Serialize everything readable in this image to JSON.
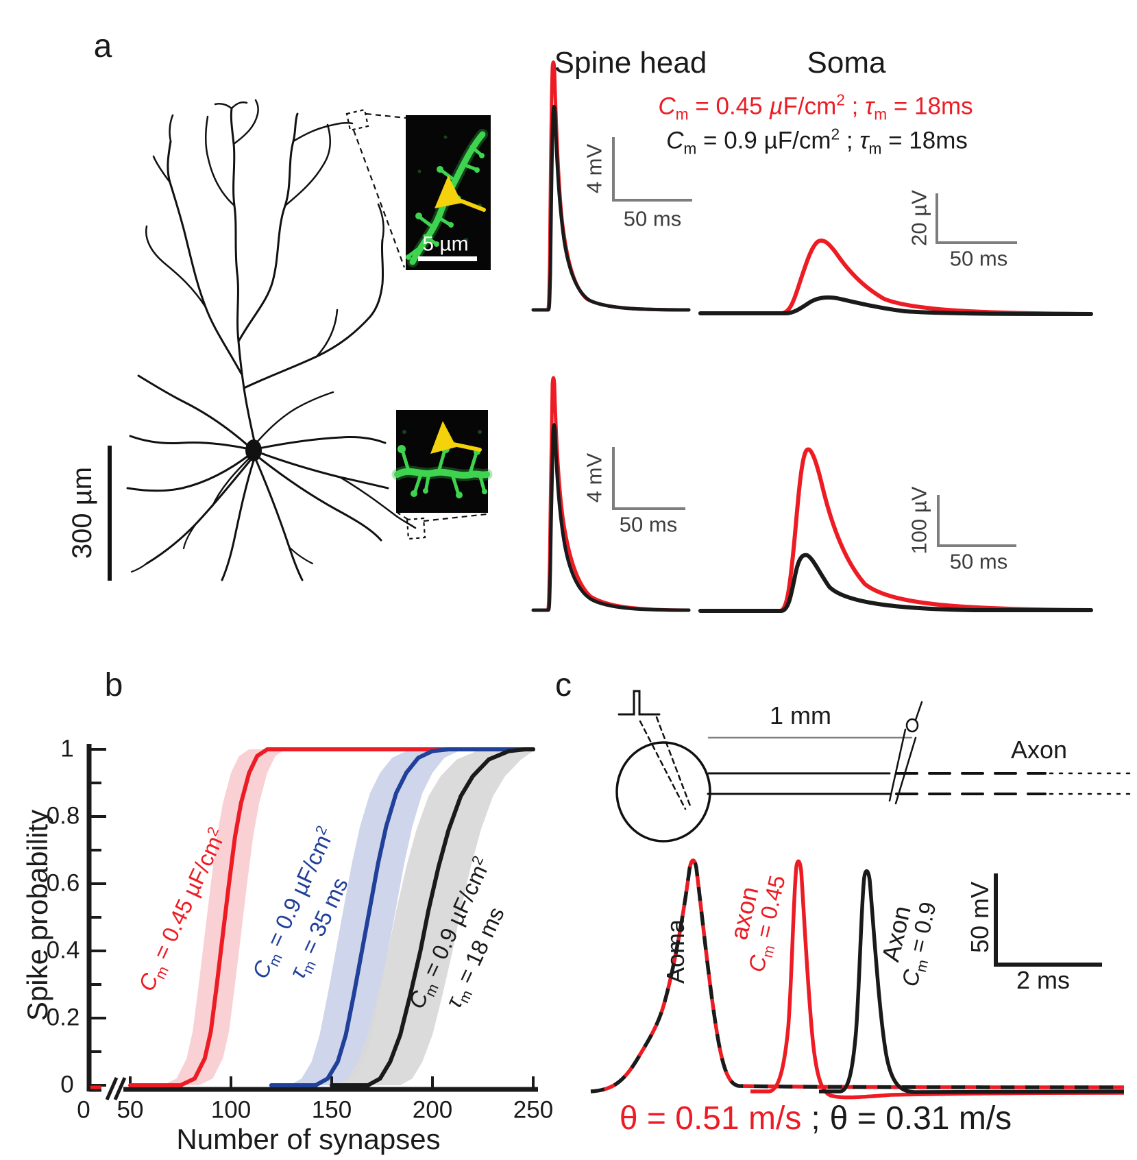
{
  "colors": {
    "red": "#ed1c24",
    "blue": "#21409a",
    "black": "#1a1a1a",
    "gray_scalebar": "#7d7d7d",
    "red_band": "#f9cfd2",
    "blue_band": "#ccd4ea",
    "black_band": "#d9d9d9",
    "inset_green": "#3fd44f",
    "arrow_yellow": "#f4d20c"
  },
  "panel_a": {
    "letter": "a",
    "morphology_scalebar_label": "300 µm",
    "inset_scalebar_label": "5 µm",
    "col_titles": {
      "spine": "Spine head",
      "soma": "Soma"
    },
    "legend": {
      "red": "*C*_{m} = 0.45 *µ*F/cm^{2} ; *τ*_{m} = 18ms",
      "black": "*C*_{m} = 0.9 µF/cm^{2} ; *τ*_{m} = 18ms"
    },
    "scalebars": {
      "spine_top": {
        "v": "4 mV",
        "h": "50 ms"
      },
      "soma_top": {
        "v": "20 µV",
        "h": "50 ms"
      },
      "spine_bottom": {
        "v": "4 mV",
        "h": "50 ms"
      },
      "soma_bottom": {
        "v": "100 µV",
        "h": "50 ms"
      }
    }
  },
  "panel_b": {
    "letter": "b",
    "series_labels": {
      "red": "*C*_{m} = 0.45  µF/cm^{2}",
      "blue_line1": "*C*_{m} = 0.9 µF/cm^{2}",
      "blue_line2": "*τ*_{m} = 35 ms",
      "black_line1": "*C*_{m} = 0.9 µF/cm^{2}",
      "black_line2": "*τ*_{m} = 18 ms"
    }
  },
  "chart_data": {
    "type": "line",
    "xlabel": "Number of synapses",
    "ylabel": "Spike probability",
    "xlim": [
      0,
      250
    ],
    "ylim": [
      0,
      1
    ],
    "x_ticks": [
      0,
      50,
      100,
      150,
      200,
      250
    ],
    "y_ticks": [
      0,
      0.2,
      0.4,
      0.6,
      0.8,
      1
    ],
    "axis_break_x": true,
    "grid": false,
    "legend_position": "none",
    "series": [
      {
        "name": "Cm = 0.45 µF/cm2",
        "color": "#ed1c24",
        "band_color": "#f9cfd2",
        "band_halfwidth_x": 9,
        "points": [
          [
            50,
            0
          ],
          [
            75,
            0
          ],
          [
            82,
            0.02
          ],
          [
            87,
            0.08
          ],
          [
            90,
            0.16
          ],
          [
            93,
            0.3
          ],
          [
            96,
            0.45
          ],
          [
            99,
            0.6
          ],
          [
            102,
            0.74
          ],
          [
            105,
            0.84
          ],
          [
            109,
            0.93
          ],
          [
            113,
            0.98
          ],
          [
            118,
            1
          ],
          [
            250,
            1
          ]
        ]
      },
      {
        "name": "Cm = 0.9 µF/cm2, τm = 35 ms",
        "color": "#21409a",
        "band_color": "#ccd4ea",
        "band_halfwidth_x": 13,
        "points": [
          [
            120,
            0
          ],
          [
            142,
            0
          ],
          [
            148,
            0.02
          ],
          [
            153,
            0.07
          ],
          [
            157,
            0.15
          ],
          [
            161,
            0.27
          ],
          [
            165,
            0.4
          ],
          [
            169,
            0.53
          ],
          [
            173,
            0.66
          ],
          [
            177,
            0.77
          ],
          [
            182,
            0.87
          ],
          [
            187,
            0.93
          ],
          [
            193,
            0.975
          ],
          [
            200,
            0.995
          ],
          [
            208,
            1
          ],
          [
            250,
            1
          ]
        ]
      },
      {
        "name": "Cm = 0.9 µF/cm2, τm = 18 ms",
        "color": "#1a1a1a",
        "band_color": "#d9d9d9",
        "band_halfwidth_x": 16,
        "points": [
          [
            150,
            0
          ],
          [
            168,
            0
          ],
          [
            174,
            0.02
          ],
          [
            179,
            0.07
          ],
          [
            184,
            0.15
          ],
          [
            189,
            0.27
          ],
          [
            194,
            0.4
          ],
          [
            198,
            0.52
          ],
          [
            203,
            0.65
          ],
          [
            208,
            0.76
          ],
          [
            214,
            0.86
          ],
          [
            220,
            0.92
          ],
          [
            228,
            0.97
          ],
          [
            238,
            0.995
          ],
          [
            246,
            1
          ],
          [
            250,
            1
          ]
        ]
      }
    ]
  },
  "panel_c": {
    "letter": "c",
    "distance_label": "1 mm",
    "axon_label": "Axon",
    "trace_labels": {
      "soma": "Aoma",
      "axon_red_line1": "axon",
      "axon_red_line2": "*C*_{m} = 0.45",
      "axon_black_line1": "Axon",
      "axon_black_line2": "*C*_{m} = 0.9"
    },
    "scalebar": {
      "v": "50 mV",
      "h": "2 ms"
    },
    "velocity": {
      "red": "θ = 0.51 m/s",
      "sep": ";",
      "black": "θ = 0.31 m/s"
    }
  }
}
